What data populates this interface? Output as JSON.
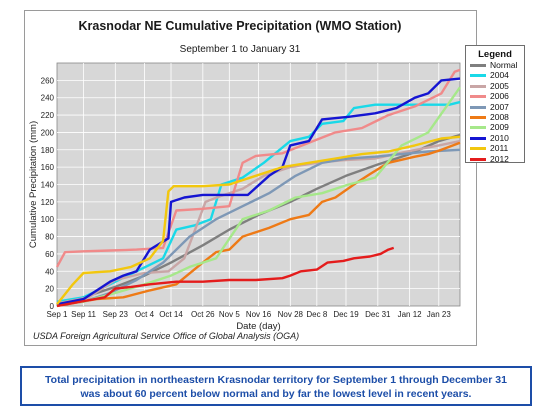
{
  "chart_data": {
    "type": "line",
    "title": "Krasnodar NE Cumulative Precipitation (WMO Station)",
    "subtitle": "September 1 to January 31",
    "xlabel": "Date (day)",
    "ylabel": "Cumulative Precipitation (mm)",
    "ylim": [
      0,
      280
    ],
    "yticks": [
      0,
      20,
      40,
      60,
      80,
      100,
      120,
      140,
      160,
      180,
      200,
      220,
      240,
      260
    ],
    "xlim": [
      0,
      152
    ],
    "xticks": [
      {
        "label": "Sep 1",
        "day": 0
      },
      {
        "label": "Sep 11",
        "day": 10
      },
      {
        "label": "Sep 23",
        "day": 22
      },
      {
        "label": "Oct 4",
        "day": 33
      },
      {
        "label": "Oct 14",
        "day": 43
      },
      {
        "label": "Oct 26",
        "day": 55
      },
      {
        "label": "Nov 5",
        "day": 65
      },
      {
        "label": "Nov 16",
        "day": 76
      },
      {
        "label": "Nov 28",
        "day": 88
      },
      {
        "label": "Dec 8",
        "day": 98
      },
      {
        "label": "Dec 19",
        "day": 109
      },
      {
        "label": "Dec 31",
        "day": 121
      },
      {
        "label": "Jan 12",
        "day": 133
      },
      {
        "label": "Jan 23",
        "day": 144
      }
    ],
    "grid": true,
    "legend_title": "Legend",
    "legend_position": "right",
    "series": [
      {
        "name": "Normal",
        "color": "#7f7f7f",
        "points": [
          [
            0,
            0
          ],
          [
            10,
            10
          ],
          [
            22,
            22
          ],
          [
            33,
            35
          ],
          [
            43,
            50
          ],
          [
            55,
            70
          ],
          [
            65,
            88
          ],
          [
            76,
            105
          ],
          [
            88,
            120
          ],
          [
            98,
            135
          ],
          [
            109,
            150
          ],
          [
            121,
            163
          ],
          [
            133,
            175
          ],
          [
            144,
            190
          ],
          [
            152,
            197
          ]
        ]
      },
      {
        "name": "2004",
        "color": "#19d9e8",
        "points": [
          [
            0,
            5
          ],
          [
            10,
            10
          ],
          [
            20,
            25
          ],
          [
            30,
            40
          ],
          [
            40,
            55
          ],
          [
            45,
            88
          ],
          [
            52,
            93
          ],
          [
            58,
            100
          ],
          [
            62,
            140
          ],
          [
            70,
            148
          ],
          [
            78,
            165
          ],
          [
            88,
            190
          ],
          [
            95,
            195
          ],
          [
            100,
            210
          ],
          [
            108,
            213
          ],
          [
            112,
            228
          ],
          [
            120,
            232
          ],
          [
            130,
            232
          ],
          [
            140,
            232
          ],
          [
            148,
            232
          ],
          [
            152,
            235
          ]
        ]
      },
      {
        "name": "2005",
        "color": "#c9a6a6",
        "points": [
          [
            0,
            3
          ],
          [
            12,
            10
          ],
          [
            22,
            30
          ],
          [
            33,
            38
          ],
          [
            42,
            40
          ],
          [
            48,
            55
          ],
          [
            56,
            120
          ],
          [
            62,
            127
          ],
          [
            70,
            135
          ],
          [
            78,
            150
          ],
          [
            88,
            160
          ],
          [
            98,
            165
          ],
          [
            108,
            168
          ],
          [
            120,
            170
          ],
          [
            132,
            178
          ],
          [
            144,
            185
          ],
          [
            152,
            190
          ]
        ]
      },
      {
        "name": "2006",
        "color": "#f08a8a",
        "points": [
          [
            0,
            45
          ],
          [
            3,
            62
          ],
          [
            10,
            63
          ],
          [
            20,
            64
          ],
          [
            30,
            65
          ],
          [
            40,
            67
          ],
          [
            45,
            110
          ],
          [
            55,
            112
          ],
          [
            65,
            115
          ],
          [
            70,
            165
          ],
          [
            75,
            173
          ],
          [
            85,
            176
          ],
          [
            95,
            188
          ],
          [
            105,
            200
          ],
          [
            115,
            205
          ],
          [
            125,
            220
          ],
          [
            135,
            230
          ],
          [
            145,
            245
          ],
          [
            150,
            270
          ],
          [
            152,
            272
          ]
        ]
      },
      {
        "name": "2007",
        "color": "#7e98b6",
        "points": [
          [
            0,
            2
          ],
          [
            10,
            5
          ],
          [
            20,
            15
          ],
          [
            30,
            30
          ],
          [
            40,
            50
          ],
          [
            50,
            80
          ],
          [
            60,
            100
          ],
          [
            70,
            115
          ],
          [
            80,
            130
          ],
          [
            90,
            150
          ],
          [
            100,
            165
          ],
          [
            110,
            170
          ],
          [
            120,
            172
          ],
          [
            130,
            175
          ],
          [
            140,
            178
          ],
          [
            152,
            180
          ]
        ]
      },
      {
        "name": "2008",
        "color": "#ee7a16",
        "points": [
          [
            0,
            0
          ],
          [
            15,
            8
          ],
          [
            25,
            10
          ],
          [
            35,
            18
          ],
          [
            45,
            25
          ],
          [
            55,
            50
          ],
          [
            60,
            62
          ],
          [
            65,
            65
          ],
          [
            70,
            80
          ],
          [
            80,
            90
          ],
          [
            88,
            100
          ],
          [
            95,
            105
          ],
          [
            100,
            120
          ],
          [
            105,
            125
          ],
          [
            112,
            140
          ],
          [
            118,
            152
          ],
          [
            125,
            165
          ],
          [
            135,
            172
          ],
          [
            140,
            175
          ],
          [
            145,
            180
          ],
          [
            152,
            188
          ]
        ]
      },
      {
        "name": "2009",
        "color": "#a6e88a",
        "points": [
          [
            0,
            2
          ],
          [
            10,
            5
          ],
          [
            22,
            15
          ],
          [
            33,
            25
          ],
          [
            43,
            35
          ],
          [
            50,
            45
          ],
          [
            55,
            50
          ],
          [
            60,
            55
          ],
          [
            70,
            100
          ],
          [
            80,
            110
          ],
          [
            90,
            125
          ],
          [
            100,
            130
          ],
          [
            110,
            140
          ],
          [
            120,
            148
          ],
          [
            130,
            185
          ],
          [
            140,
            200
          ],
          [
            152,
            252
          ]
        ]
      },
      {
        "name": "2010",
        "color": "#1515d2",
        "points": [
          [
            0,
            2
          ],
          [
            10,
            8
          ],
          [
            20,
            28
          ],
          [
            25,
            35
          ],
          [
            30,
            40
          ],
          [
            35,
            65
          ],
          [
            42,
            78
          ],
          [
            43,
            120
          ],
          [
            48,
            125
          ],
          [
            55,
            128
          ],
          [
            62,
            128
          ],
          [
            72,
            128
          ],
          [
            80,
            150
          ],
          [
            85,
            160
          ],
          [
            88,
            185
          ],
          [
            95,
            190
          ],
          [
            100,
            215
          ],
          [
            110,
            218
          ],
          [
            120,
            222
          ],
          [
            128,
            228
          ],
          [
            135,
            240
          ],
          [
            140,
            245
          ],
          [
            145,
            260
          ],
          [
            152,
            262
          ]
        ]
      },
      {
        "name": "2011",
        "color": "#f2c70e",
        "points": [
          [
            0,
            2
          ],
          [
            6,
            25
          ],
          [
            10,
            38
          ],
          [
            20,
            40
          ],
          [
            28,
            45
          ],
          [
            35,
            55
          ],
          [
            40,
            75
          ],
          [
            42,
            132
          ],
          [
            44,
            138
          ],
          [
            55,
            138
          ],
          [
            65,
            140
          ],
          [
            75,
            150
          ],
          [
            85,
            160
          ],
          [
            95,
            165
          ],
          [
            105,
            170
          ],
          [
            115,
            175
          ],
          [
            125,
            178
          ],
          [
            135,
            185
          ],
          [
            145,
            193
          ],
          [
            152,
            195
          ]
        ]
      },
      {
        "name": "2012",
        "color": "#e41c1c",
        "points": [
          [
            0,
            0
          ],
          [
            18,
            10
          ],
          [
            22,
            20
          ],
          [
            28,
            22
          ],
          [
            35,
            25
          ],
          [
            45,
            28
          ],
          [
            55,
            28
          ],
          [
            65,
            30
          ],
          [
            75,
            30
          ],
          [
            85,
            32
          ],
          [
            88,
            35
          ],
          [
            92,
            40
          ],
          [
            98,
            42
          ],
          [
            102,
            50
          ],
          [
            108,
            52
          ],
          [
            112,
            55
          ],
          [
            118,
            57
          ],
          [
            122,
            60
          ],
          [
            125,
            65
          ],
          [
            127,
            67
          ]
        ]
      }
    ]
  },
  "source_note": "USDA Foreign Agricultural Service Office of Global Analysis (OGA)",
  "caption": {
    "line1": "Total precipitation in northeastern Krasnodar territory for September 1 through December 31",
    "line2": "was about  60 percent below normal and by far the lowest level in recent years.",
    "color": "#1d4ea8"
  },
  "colors": {
    "plot_background": "#d7d7d7",
    "gridline": "#ffffff"
  }
}
